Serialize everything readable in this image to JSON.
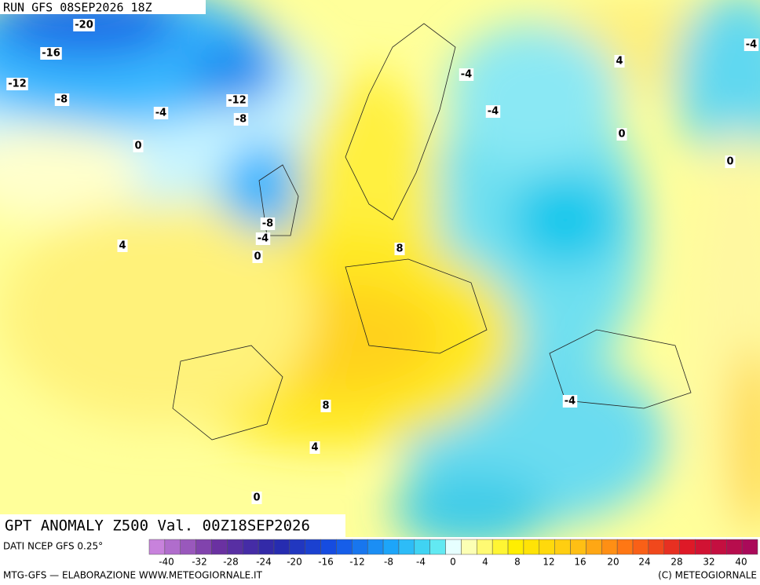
{
  "header": {
    "run": "RUN GFS 08SEP2026 18Z"
  },
  "map": {
    "contour_labels": [
      "-20",
      "-16",
      "-12",
      "-8",
      "-4",
      "0",
      "-12",
      "-8",
      "4",
      "-8",
      "-4",
      "0",
      "8",
      "8",
      "4",
      "0",
      "-4",
      "-4",
      "4",
      "0",
      "0",
      "-4",
      "-4"
    ]
  },
  "title": "GPT ANOMALY Z500 Val. 00Z18SEP2026",
  "footer": {
    "source": "DATI NCEP GFS 0.25°",
    "credit": "MTG-GFS — ELABORAZIONE WWW.METEOGIORNALE.IT",
    "copyright": "(C) METEOGIORNALE"
  },
  "colorbar": {
    "labels": [
      "-40",
      "-32",
      "-28",
      "-24",
      "-20",
      "-16",
      "-12",
      "-8",
      "-4",
      "0",
      "4",
      "8",
      "12",
      "16",
      "20",
      "24",
      "28",
      "32",
      "40"
    ]
  }
}
